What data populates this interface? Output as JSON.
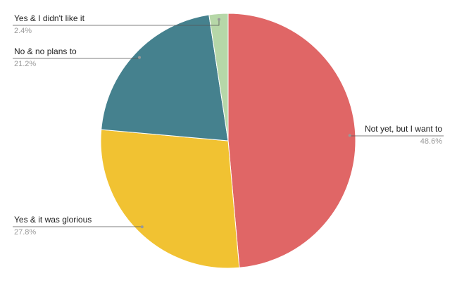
{
  "chart_data": {
    "type": "pie",
    "categories": [
      "Not yet, but I want to",
      "Yes & it was glorious",
      "No & no plans to",
      "Yes & I didn't like it"
    ],
    "values": [
      48.6,
      27.8,
      21.2,
      2.4
    ],
    "value_labels": [
      "48.6%",
      "27.8%",
      "21.2%",
      "2.4%"
    ],
    "colors": [
      "#e06666",
      "#f1c232",
      "#45818e",
      "#b6d7a8"
    ]
  }
}
